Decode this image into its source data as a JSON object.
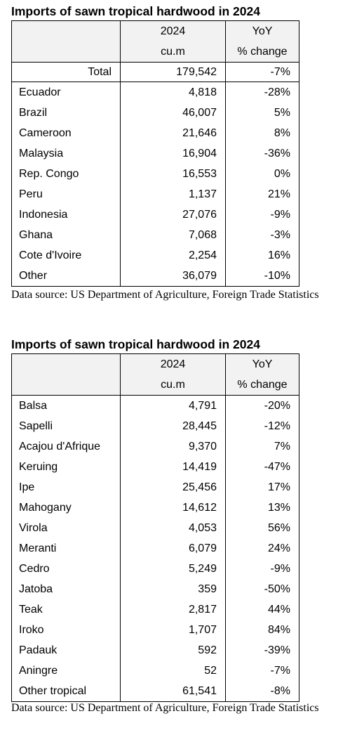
{
  "table1": {
    "title": "Imports of sawn tropical hardwood in 2024",
    "header": {
      "col2_line1": "2024",
      "col2_line2": "cu.m",
      "col3_line1": "YoY",
      "col3_line2": "% change"
    },
    "total": {
      "label": "Total",
      "volume": "179,542",
      "change": "-7%"
    },
    "rows": [
      {
        "name": "Ecuador",
        "volume": "4,818",
        "change": "-28%"
      },
      {
        "name": "Brazil",
        "volume": "46,007",
        "change": "5%"
      },
      {
        "name": "Cameroon",
        "volume": "21,646",
        "change": "8%"
      },
      {
        "name": "Malaysia",
        "volume": "16,904",
        "change": "-36%"
      },
      {
        "name": "Rep. Congo",
        "volume": "16,553",
        "change": "0%"
      },
      {
        "name": "Peru",
        "volume": "1,137",
        "change": "21%"
      },
      {
        "name": "Indonesia",
        "volume": "27,076",
        "change": "-9%"
      },
      {
        "name": "Ghana",
        "volume": "7,068",
        "change": "-3%"
      },
      {
        "name": "Cote d'Ivoire",
        "volume": "2,254",
        "change": "16%"
      },
      {
        "name": "Other",
        "volume": "36,079",
        "change": "-10%"
      }
    ],
    "source": "Data source: US Department of Agriculture, Foreign Trade Statistics"
  },
  "table2": {
    "title": "Imports of sawn tropical hardwood in 2024",
    "header": {
      "col2_line1": "2024",
      "col2_line2": "cu.m",
      "col3_line1": "YoY",
      "col3_line2": "% change"
    },
    "rows": [
      {
        "name": "Balsa",
        "volume": "4,791",
        "change": "-20%"
      },
      {
        "name": "Sapelli",
        "volume": "28,445",
        "change": "-12%"
      },
      {
        "name": "Acajou d'Afrique",
        "volume": "9,370",
        "change": "7%"
      },
      {
        "name": "Keruing",
        "volume": "14,419",
        "change": "-47%"
      },
      {
        "name": "Ipe",
        "volume": "25,456",
        "change": "17%"
      },
      {
        "name": "Mahogany",
        "volume": "14,612",
        "change": "13%"
      },
      {
        "name": "Virola",
        "volume": "4,053",
        "change": "56%"
      },
      {
        "name": "Meranti",
        "volume": "6,079",
        "change": "24%"
      },
      {
        "name": "Cedro",
        "volume": "5,249",
        "change": "-9%"
      },
      {
        "name": "Jatoba",
        "volume": "359",
        "change": "-50%"
      },
      {
        "name": "Teak",
        "volume": "2,817",
        "change": "44%"
      },
      {
        "name": "Iroko",
        "volume": "1,707",
        "change": "84%"
      },
      {
        "name": "Padauk",
        "volume": "592",
        "change": "-39%"
      },
      {
        "name": "Aningre",
        "volume": "52",
        "change": "-7%"
      },
      {
        "name": "Other tropical",
        "volume": "61,541",
        "change": "-8%"
      }
    ],
    "source": "Data source: US Department of Agriculture, Foreign Trade Statistics"
  }
}
